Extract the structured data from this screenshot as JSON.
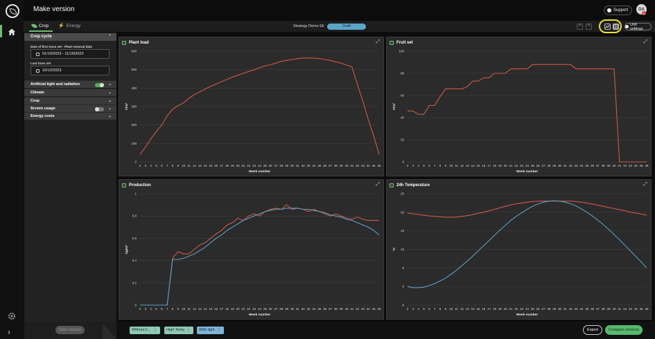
{
  "app": {
    "title": "Make version"
  },
  "topbar": {
    "support_label": "Support",
    "avatar_initials": "DA",
    "avatar_badge": "1"
  },
  "tabs": [
    {
      "label": "Crop",
      "active": true
    },
    {
      "label": "Energy",
      "active": false
    }
  ],
  "strategy": {
    "label": "Strategy",
    "value": "Demo Eli",
    "status": "Draft"
  },
  "toolbar": {
    "unit_settings_label": "Unit settings",
    "undo_icon": "undo-icon",
    "redo_icon": "redo-icon",
    "line_chart_icon": "line-chart-view-icon",
    "table_icon": "table-view-icon",
    "highlight_color": "#f0e32a"
  },
  "sidebar": {
    "crop_cycle": {
      "title": "Crop cycle",
      "first_truss_label": "Date of first truss set - Plant removal date",
      "first_truss_value": "01/10/2023 - 11/16/2023",
      "last_truss_label": "Last truss set",
      "last_truss_value": "10/12/2023"
    },
    "sections": [
      {
        "label": "Artificial light and radiation",
        "toggle": true
      },
      {
        "label": "Climate"
      },
      {
        "label": "Crop"
      },
      {
        "label": "Screen usage",
        "toggle": false
      },
      {
        "label": "Energy costs"
      }
    ]
  },
  "bottombar": {
    "store_label": "Store version",
    "scenarios": [
      "Without li...",
      "High Temp",
      "With light"
    ],
    "export_label": "Export",
    "compare_label": "Compare versions"
  },
  "colors": {
    "accent": "#56b96e",
    "series_red": "#d0594a",
    "series_blue": "#5aa0c0"
  },
  "chart_data": [
    {
      "type": "line",
      "title": "Plant load",
      "xlabel": "Week number",
      "ylabel": "#/m²",
      "x": [
        2,
        3,
        4,
        5,
        6,
        7,
        8,
        9,
        10,
        11,
        12,
        13,
        14,
        15,
        16,
        17,
        18,
        19,
        20,
        21,
        22,
        23,
        24,
        25,
        26,
        27,
        28,
        29,
        30,
        31,
        32,
        33,
        34,
        35,
        36,
        37,
        38,
        39,
        40,
        41,
        42,
        43,
        44,
        45,
        46
      ],
      "ylim": [
        0,
        600
      ],
      "yticks": [
        0,
        100,
        200,
        300,
        400,
        500,
        600
      ],
      "series": [
        {
          "color": "#d0594a",
          "values": [
            40,
            80,
            125,
            165,
            200,
            250,
            285,
            305,
            320,
            345,
            365,
            380,
            395,
            410,
            422,
            435,
            447,
            460,
            470,
            480,
            490,
            500,
            510,
            520,
            527,
            535,
            545,
            550,
            555,
            560,
            563,
            563,
            563,
            560,
            555,
            550,
            542,
            535,
            525,
            515,
            420,
            330,
            230,
            140,
            40
          ]
        }
      ]
    },
    {
      "type": "line",
      "title": "Fruit set",
      "xlabel": "Week number",
      "ylabel": "#/m²",
      "x": [
        2,
        3,
        4,
        5,
        6,
        7,
        8,
        9,
        10,
        11,
        12,
        13,
        14,
        15,
        16,
        17,
        18,
        19,
        20,
        21,
        22,
        23,
        24,
        25,
        26,
        27,
        28,
        29,
        30,
        31,
        32,
        33,
        34,
        35,
        36,
        37,
        38,
        39,
        40,
        41,
        42,
        43,
        44,
        45,
        46
      ],
      "ylim": [
        0,
        100
      ],
      "yticks": [
        0,
        20,
        40,
        60,
        80,
        100
      ],
      "series": [
        {
          "color": "#d0594a",
          "values": [
            46,
            46,
            43,
            43,
            51,
            51,
            59,
            66,
            66,
            66,
            66,
            68,
            73,
            73,
            76,
            76,
            80,
            80,
            80,
            84,
            84,
            84,
            84,
            88,
            88,
            88,
            88,
            88,
            88,
            88,
            88,
            84,
            84,
            84,
            84,
            84,
            84,
            84,
            84,
            0,
            0,
            0,
            0,
            0,
            0
          ]
        }
      ]
    },
    {
      "type": "line",
      "title": "Production",
      "xlabel": "Week number",
      "ylabel": "kg/m²",
      "x": [
        2,
        3,
        4,
        5,
        6,
        7,
        8,
        9,
        10,
        11,
        12,
        13,
        14,
        15,
        16,
        17,
        18,
        19,
        20,
        21,
        22,
        23,
        24,
        25,
        26,
        27,
        28,
        29,
        30,
        31,
        32,
        33,
        34,
        35,
        36,
        37,
        38,
        39,
        40,
        41,
        42,
        43,
        44,
        45,
        46
      ],
      "ylim": [
        0,
        1
      ],
      "yticks": [
        0,
        0.2,
        0.4,
        0.6,
        0.8,
        1
      ],
      "series": [
        {
          "color": "#d0594a",
          "values": [
            0,
            0,
            0,
            0,
            0,
            0,
            0.42,
            0.48,
            0.46,
            0.46,
            0.5,
            0.54,
            0.56,
            0.6,
            0.64,
            0.67,
            0.72,
            0.74,
            0.78,
            0.76,
            0.8,
            0.82,
            0.8,
            0.84,
            0.86,
            0.87,
            0.86,
            0.9,
            0.86,
            0.87,
            0.86,
            0.84,
            0.86,
            0.84,
            0.82,
            0.8,
            0.82,
            0.8,
            0.78,
            0.77,
            0.79,
            0.77,
            0.76,
            0.76,
            0.76
          ]
        },
        {
          "color": "#5aa0c0",
          "values": [
            0,
            0,
            0,
            0,
            0,
            0,
            0.41,
            0.41,
            0.42,
            0.44,
            0.46,
            0.49,
            0.52,
            0.56,
            0.6,
            0.63,
            0.67,
            0.7,
            0.73,
            0.76,
            0.78,
            0.8,
            0.82,
            0.84,
            0.85,
            0.86,
            0.86,
            0.87,
            0.87,
            0.87,
            0.86,
            0.86,
            0.85,
            0.84,
            0.83,
            0.81,
            0.8,
            0.79,
            0.77,
            0.76,
            0.74,
            0.72,
            0.7,
            0.67,
            0.63
          ]
        }
      ]
    },
    {
      "type": "line",
      "title": "24h Temperature",
      "xlabel": "Week number",
      "ylabel": "°C",
      "x": [
        2,
        3,
        4,
        5,
        6,
        7,
        8,
        9,
        10,
        11,
        12,
        13,
        14,
        15,
        16,
        17,
        18,
        19,
        20,
        21,
        22,
        23,
        24,
        25,
        26,
        27,
        28,
        29,
        30,
        31,
        32,
        33,
        34,
        35,
        36,
        37,
        38,
        39,
        40,
        41,
        42,
        43,
        44,
        45,
        46
      ],
      "ylim": [
        -5,
        25
      ],
      "yticks": [
        -5,
        0,
        5,
        10,
        15,
        20,
        25
      ],
      "series": [
        {
          "color": "#d0594a",
          "values": [
            19.8,
            19.6,
            19.4,
            19.2,
            19,
            18.9,
            18.8,
            18.7,
            18.7,
            18.7,
            18.9,
            19.1,
            19.4,
            19.7,
            20,
            20.4,
            20.8,
            21.2,
            21.6,
            22,
            22.3,
            22.5,
            22.7,
            22.9,
            23,
            23,
            23,
            23,
            23,
            23,
            23,
            22.9,
            22.7,
            22.5,
            22.2,
            21.9,
            21.6,
            21.3,
            21,
            20.7,
            20.4,
            20,
            19.8,
            19.5,
            19.2
          ]
        },
        {
          "color": "#5aa0c0",
          "values": [
            0,
            -0.3,
            -0.3,
            -0.2,
            0.3,
            0.8,
            1.5,
            2.3,
            3.3,
            4.4,
            5.6,
            6.9,
            8.2,
            9.6,
            11,
            12.4,
            13.8,
            15.2,
            16.5,
            17.8,
            18.9,
            19.9,
            20.8,
            21.6,
            22.2,
            22.7,
            23,
            23.1,
            23,
            22.7,
            22.3,
            21.7,
            20.9,
            20,
            19,
            17.9,
            16.7,
            15.4,
            14,
            12.6,
            11.1,
            9.6,
            8.1,
            6.6,
            5
          ]
        }
      ]
    }
  ]
}
